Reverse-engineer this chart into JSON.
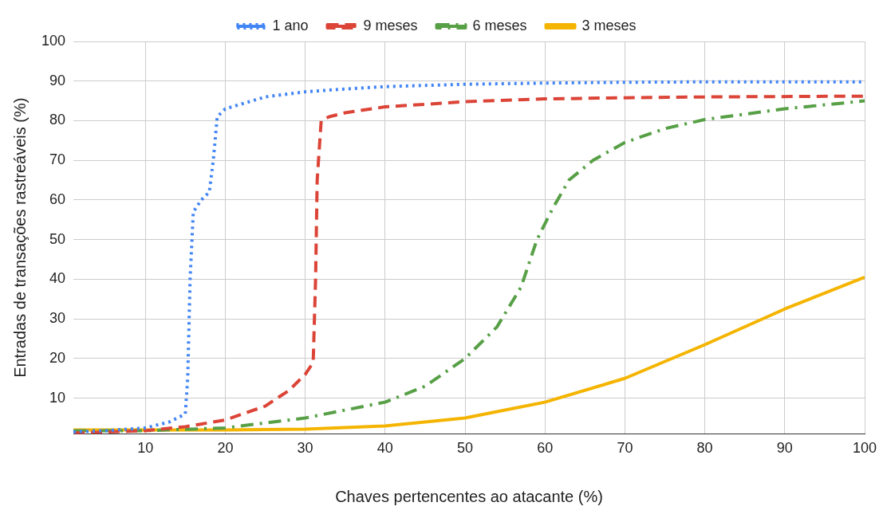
{
  "chart_data": {
    "type": "line",
    "xlabel": "Chaves pertencentes ao atacante (%)",
    "ylabel": "Entradas de transações rastreáveis (%)",
    "xlim": [
      1,
      100
    ],
    "ylim": [
      1,
      100
    ],
    "xticks": [
      10,
      20,
      30,
      40,
      50,
      60,
      70,
      80,
      90,
      100
    ],
    "yticks": [
      10,
      20,
      30,
      40,
      50,
      60,
      70,
      80,
      90,
      100
    ],
    "grid": true,
    "legend": "top",
    "marker": "none",
    "series": [
      {
        "name": "1 ano",
        "color": "#4285f4",
        "line_style": "dotted",
        "x": [
          1,
          5,
          10,
          13,
          15,
          15.3,
          15.6,
          16,
          17,
          18,
          18.5,
          19,
          20,
          25,
          30,
          35,
          40,
          50,
          60,
          70,
          80,
          100
        ],
        "values": [
          1.5,
          1.8,
          2.5,
          4,
          6,
          15,
          40,
          57,
          60,
          62,
          70,
          81,
          83,
          86,
          87.3,
          88,
          88.6,
          89.2,
          89.5,
          89.7,
          89.8,
          89.8
        ]
      },
      {
        "name": "9 meses",
        "color": "#db4437",
        "line_style": "dashed",
        "x": [
          1,
          10,
          15,
          20,
          25,
          28,
          30,
          31,
          31.3,
          31.5,
          32,
          33,
          35,
          40,
          50,
          60,
          70,
          80,
          100
        ],
        "values": [
          1.2,
          1.8,
          2.8,
          4.5,
          8,
          12,
          16,
          19,
          40,
          65,
          80,
          81,
          82,
          83.5,
          84.8,
          85.5,
          85.8,
          86,
          86.2
        ]
      },
      {
        "name": "6 meses",
        "color": "#57a046",
        "line_style": "dashdot",
        "x": [
          1,
          10,
          20,
          30,
          40,
          45,
          50,
          54,
          57,
          59,
          61,
          63,
          66,
          70,
          75,
          80,
          90,
          100
        ],
        "values": [
          1.8,
          1.8,
          2.5,
          5,
          9,
          13,
          20,
          28,
          38,
          50,
          58,
          65,
          70,
          74.5,
          78,
          80.3,
          83,
          85
        ]
      },
      {
        "name": "3 meses",
        "color": "#f4b400",
        "line_style": "solid",
        "x": [
          1,
          20,
          30,
          40,
          50,
          60,
          70,
          80,
          90,
          100
        ],
        "values": [
          2,
          2,
          2.2,
          3,
          5,
          9,
          15,
          23.5,
          32.5,
          40.5
        ]
      }
    ]
  }
}
